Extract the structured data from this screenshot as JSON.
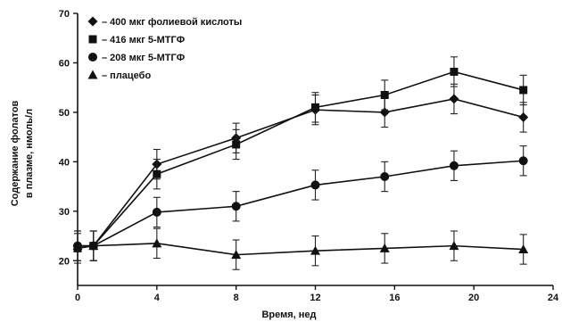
{
  "chart_data": {
    "type": "line",
    "title": "",
    "xlabel": "Время, нед",
    "ylabel_lines": [
      "Содержание фолатов",
      "в плазме, нмоль/л"
    ],
    "xlim": [
      0,
      24
    ],
    "ylim": [
      15,
      70
    ],
    "xticks": [
      0,
      4,
      8,
      12,
      16,
      20,
      24
    ],
    "yticks": [
      20,
      30,
      40,
      50,
      60,
      70
    ],
    "grid": false,
    "legend_position": "top-left",
    "series": [
      {
        "name": "– 400 мкг фолиевой кислоты",
        "marker": "diamond",
        "x": [
          0,
          0.8,
          4,
          8,
          12,
          15.5,
          19,
          22.5
        ],
        "y": [
          23,
          23,
          39.5,
          44.8,
          50.5,
          50,
          52.7,
          49
        ],
        "err": [
          3,
          3,
          3,
          3,
          3,
          3,
          3,
          3
        ]
      },
      {
        "name": "– 416 мкг 5-МТГФ",
        "marker": "square",
        "x": [
          0,
          0.8,
          4,
          8,
          12,
          15.5,
          19,
          22.5
        ],
        "y": [
          22.5,
          23,
          37.5,
          43.5,
          51,
          53.5,
          58.2,
          54.5
        ],
        "err": [
          3,
          3,
          3,
          3,
          3,
          3,
          3,
          3
        ]
      },
      {
        "name": "– 208 мкг 5-МТГФ",
        "marker": "circle",
        "x": [
          0,
          0.8,
          4,
          8,
          12,
          15.5,
          19,
          22.5
        ],
        "y": [
          23,
          23,
          29.8,
          31,
          35.3,
          37,
          39.2,
          40.2
        ],
        "err": [
          3,
          3,
          3,
          3,
          3,
          3,
          3,
          3
        ]
      },
      {
        "name": "– плацебо",
        "marker": "triangle",
        "x": [
          0,
          0.8,
          4,
          8,
          12,
          15.5,
          19,
          22.5
        ],
        "y": [
          23,
          23,
          23.5,
          21.2,
          22,
          22.5,
          23,
          22.3
        ],
        "err": [
          3,
          3,
          3,
          3,
          3,
          3,
          3,
          3
        ]
      }
    ]
  }
}
